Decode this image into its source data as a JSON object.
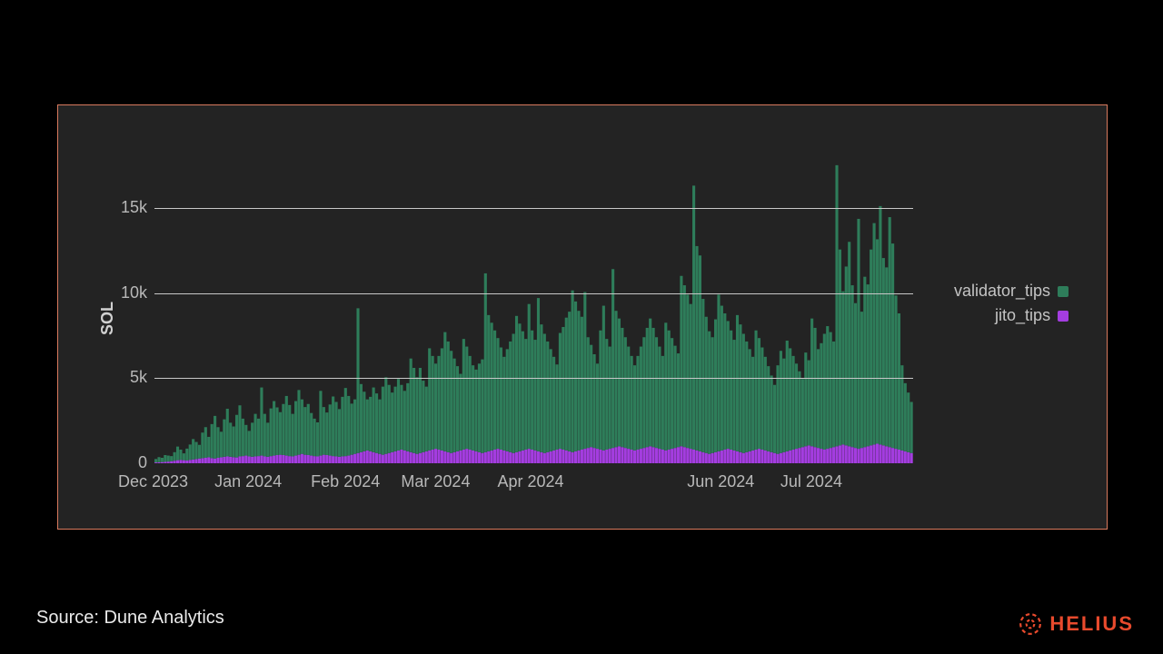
{
  "chart": {
    "type": "stacked-bar",
    "panel_bg": "#232323",
    "panel_border": "#d97a5e",
    "grid_color": "#c8c8c8",
    "text_color": "#b8b8b8",
    "ylabel": "SOL",
    "ylabel_fontsize": 18,
    "ylim": [
      0,
      16000
    ],
    "yticks": [
      {
        "v": 0,
        "label": "0"
      },
      {
        "v": 5000,
        "label": "5k"
      },
      {
        "v": 10000,
        "label": "10k"
      },
      {
        "v": 15000,
        "label": "15k"
      }
    ],
    "xticks": [
      {
        "pos": 0,
        "label": "Dec 2023"
      },
      {
        "pos": 31,
        "label": "Jan 2024"
      },
      {
        "pos": 62,
        "label": "Feb 2024"
      },
      {
        "pos": 91,
        "label": "Mar 2024"
      },
      {
        "pos": 122,
        "label": "Apr 2024"
      },
      {
        "pos": 152,
        "label": ""
      },
      {
        "pos": 183,
        "label": "Jun 2024"
      },
      {
        "pos": 213,
        "label": "Jul 2024"
      }
    ],
    "n_bars": 244,
    "series": [
      {
        "name": "jito_tips",
        "color": "#a43de0",
        "values": [
          50,
          60,
          70,
          80,
          100,
          120,
          150,
          180,
          200,
          180,
          160,
          200,
          220,
          250,
          280,
          300,
          320,
          350,
          300,
          280,
          320,
          350,
          380,
          400,
          380,
          360,
          340,
          400,
          420,
          450,
          400,
          380,
          400,
          420,
          450,
          400,
          380,
          420,
          450,
          480,
          500,
          480,
          450,
          420,
          400,
          450,
          500,
          550,
          500,
          480,
          450,
          420,
          400,
          450,
          500,
          480,
          450,
          420,
          400,
          380,
          400,
          420,
          450,
          500,
          550,
          600,
          650,
          700,
          750,
          700,
          650,
          600,
          550,
          500,
          550,
          600,
          650,
          700,
          750,
          800,
          750,
          700,
          650,
          600,
          550,
          600,
          650,
          700,
          750,
          800,
          850,
          800,
          750,
          700,
          650,
          600,
          650,
          700,
          750,
          800,
          850,
          800,
          750,
          700,
          650,
          600,
          650,
          700,
          750,
          800,
          850,
          800,
          750,
          700,
          650,
          600,
          650,
          700,
          750,
          800,
          850,
          800,
          750,
          700,
          650,
          600,
          650,
          700,
          750,
          800,
          850,
          800,
          750,
          700,
          650,
          700,
          750,
          800,
          850,
          900,
          950,
          900,
          850,
          800,
          750,
          800,
          850,
          900,
          950,
          1000,
          950,
          900,
          850,
          800,
          750,
          800,
          850,
          900,
          950,
          1000,
          950,
          900,
          850,
          800,
          750,
          800,
          850,
          900,
          950,
          1000,
          950,
          900,
          850,
          800,
          750,
          700,
          650,
          600,
          550,
          600,
          650,
          700,
          750,
          800,
          850,
          800,
          750,
          700,
          650,
          600,
          650,
          700,
          750,
          800,
          850,
          800,
          750,
          700,
          650,
          600,
          550,
          600,
          650,
          700,
          750,
          800,
          850,
          900,
          950,
          1000,
          1050,
          1000,
          950,
          900,
          850,
          800,
          850,
          900,
          950,
          1000,
          1050,
          1100,
          1050,
          1000,
          950,
          900,
          850,
          900,
          950,
          1000,
          1050,
          1100,
          1150,
          1100,
          1050,
          1000,
          950,
          900,
          850,
          800,
          750,
          700,
          650,
          600
        ]
      },
      {
        "name": "validator_tips",
        "color": "#2e7d5a",
        "values": [
          200,
          300,
          250,
          400,
          350,
          300,
          500,
          800,
          600,
          400,
          700,
          900,
          1200,
          1000,
          800,
          1500,
          1800,
          1200,
          2000,
          2500,
          1800,
          1500,
          2200,
          2800,
          2000,
          1800,
          2500,
          3000,
          2200,
          1800,
          1500,
          2000,
          2500,
          2200,
          4000,
          2500,
          2000,
          2800,
          3200,
          2800,
          2500,
          3000,
          3500,
          3000,
          2500,
          3200,
          3800,
          3200,
          2800,
          3000,
          2500,
          2200,
          2000,
          3800,
          2800,
          2500,
          3000,
          3500,
          3200,
          2800,
          3500,
          4000,
          3500,
          3000,
          3200,
          8500,
          4000,
          3500,
          3000,
          3200,
          3800,
          3500,
          3200,
          4000,
          4500,
          4000,
          3500,
          3800,
          4200,
          3800,
          3500,
          4000,
          5500,
          5000,
          4500,
          5000,
          4200,
          3800,
          6000,
          5500,
          5000,
          5500,
          6000,
          7000,
          6500,
          6000,
          5500,
          5000,
          4500,
          6500,
          6000,
          5500,
          5000,
          4800,
          5200,
          5500,
          10500,
          8000,
          7500,
          7000,
          6500,
          6000,
          5500,
          6000,
          6500,
          7000,
          8000,
          7500,
          7000,
          6500,
          8500,
          7000,
          6500,
          9000,
          7500,
          7000,
          6500,
          6000,
          5500,
          5000,
          6800,
          7200,
          7800,
          8200,
          9500,
          8800,
          8200,
          7800,
          9200,
          6500,
          6000,
          5500,
          5000,
          7000,
          8500,
          6500,
          6000,
          10500,
          8000,
          7500,
          7000,
          6500,
          6000,
          5500,
          5000,
          5500,
          6000,
          6500,
          7000,
          7500,
          7000,
          6500,
          6000,
          5500,
          7500,
          7000,
          6500,
          6000,
          5500,
          10000,
          9500,
          9000,
          8500,
          15500,
          12000,
          11500,
          9000,
          8000,
          7200,
          6800,
          7800,
          9200,
          8500,
          8000,
          7500,
          7000,
          6500,
          8000,
          7500,
          7000,
          6500,
          6000,
          5500,
          7000,
          6500,
          6000,
          5500,
          5000,
          4500,
          4000,
          5200,
          6000,
          5500,
          6500,
          6000,
          5500,
          5000,
          4500,
          4000,
          5500,
          5000,
          7500,
          7000,
          5800,
          6200,
          6800,
          7200,
          6800,
          6200,
          16500,
          11500,
          9000,
          10500,
          12000,
          9500,
          8500,
          13500,
          8000,
          10000,
          9500,
          11500,
          13000,
          12000,
          14000,
          11000,
          10500,
          13500,
          12000,
          9000,
          8000,
          5000,
          4000,
          3500,
          3000
        ]
      }
    ],
    "legend": {
      "items": [
        {
          "label": "validator_tips",
          "color": "#2e7d5a"
        },
        {
          "label": "jito_tips",
          "color": "#a43de0"
        }
      ],
      "fontsize": 18
    }
  },
  "source_text": "Source: Dune Analytics",
  "brand": {
    "name": "HELIUS",
    "color": "#e84a2d"
  }
}
